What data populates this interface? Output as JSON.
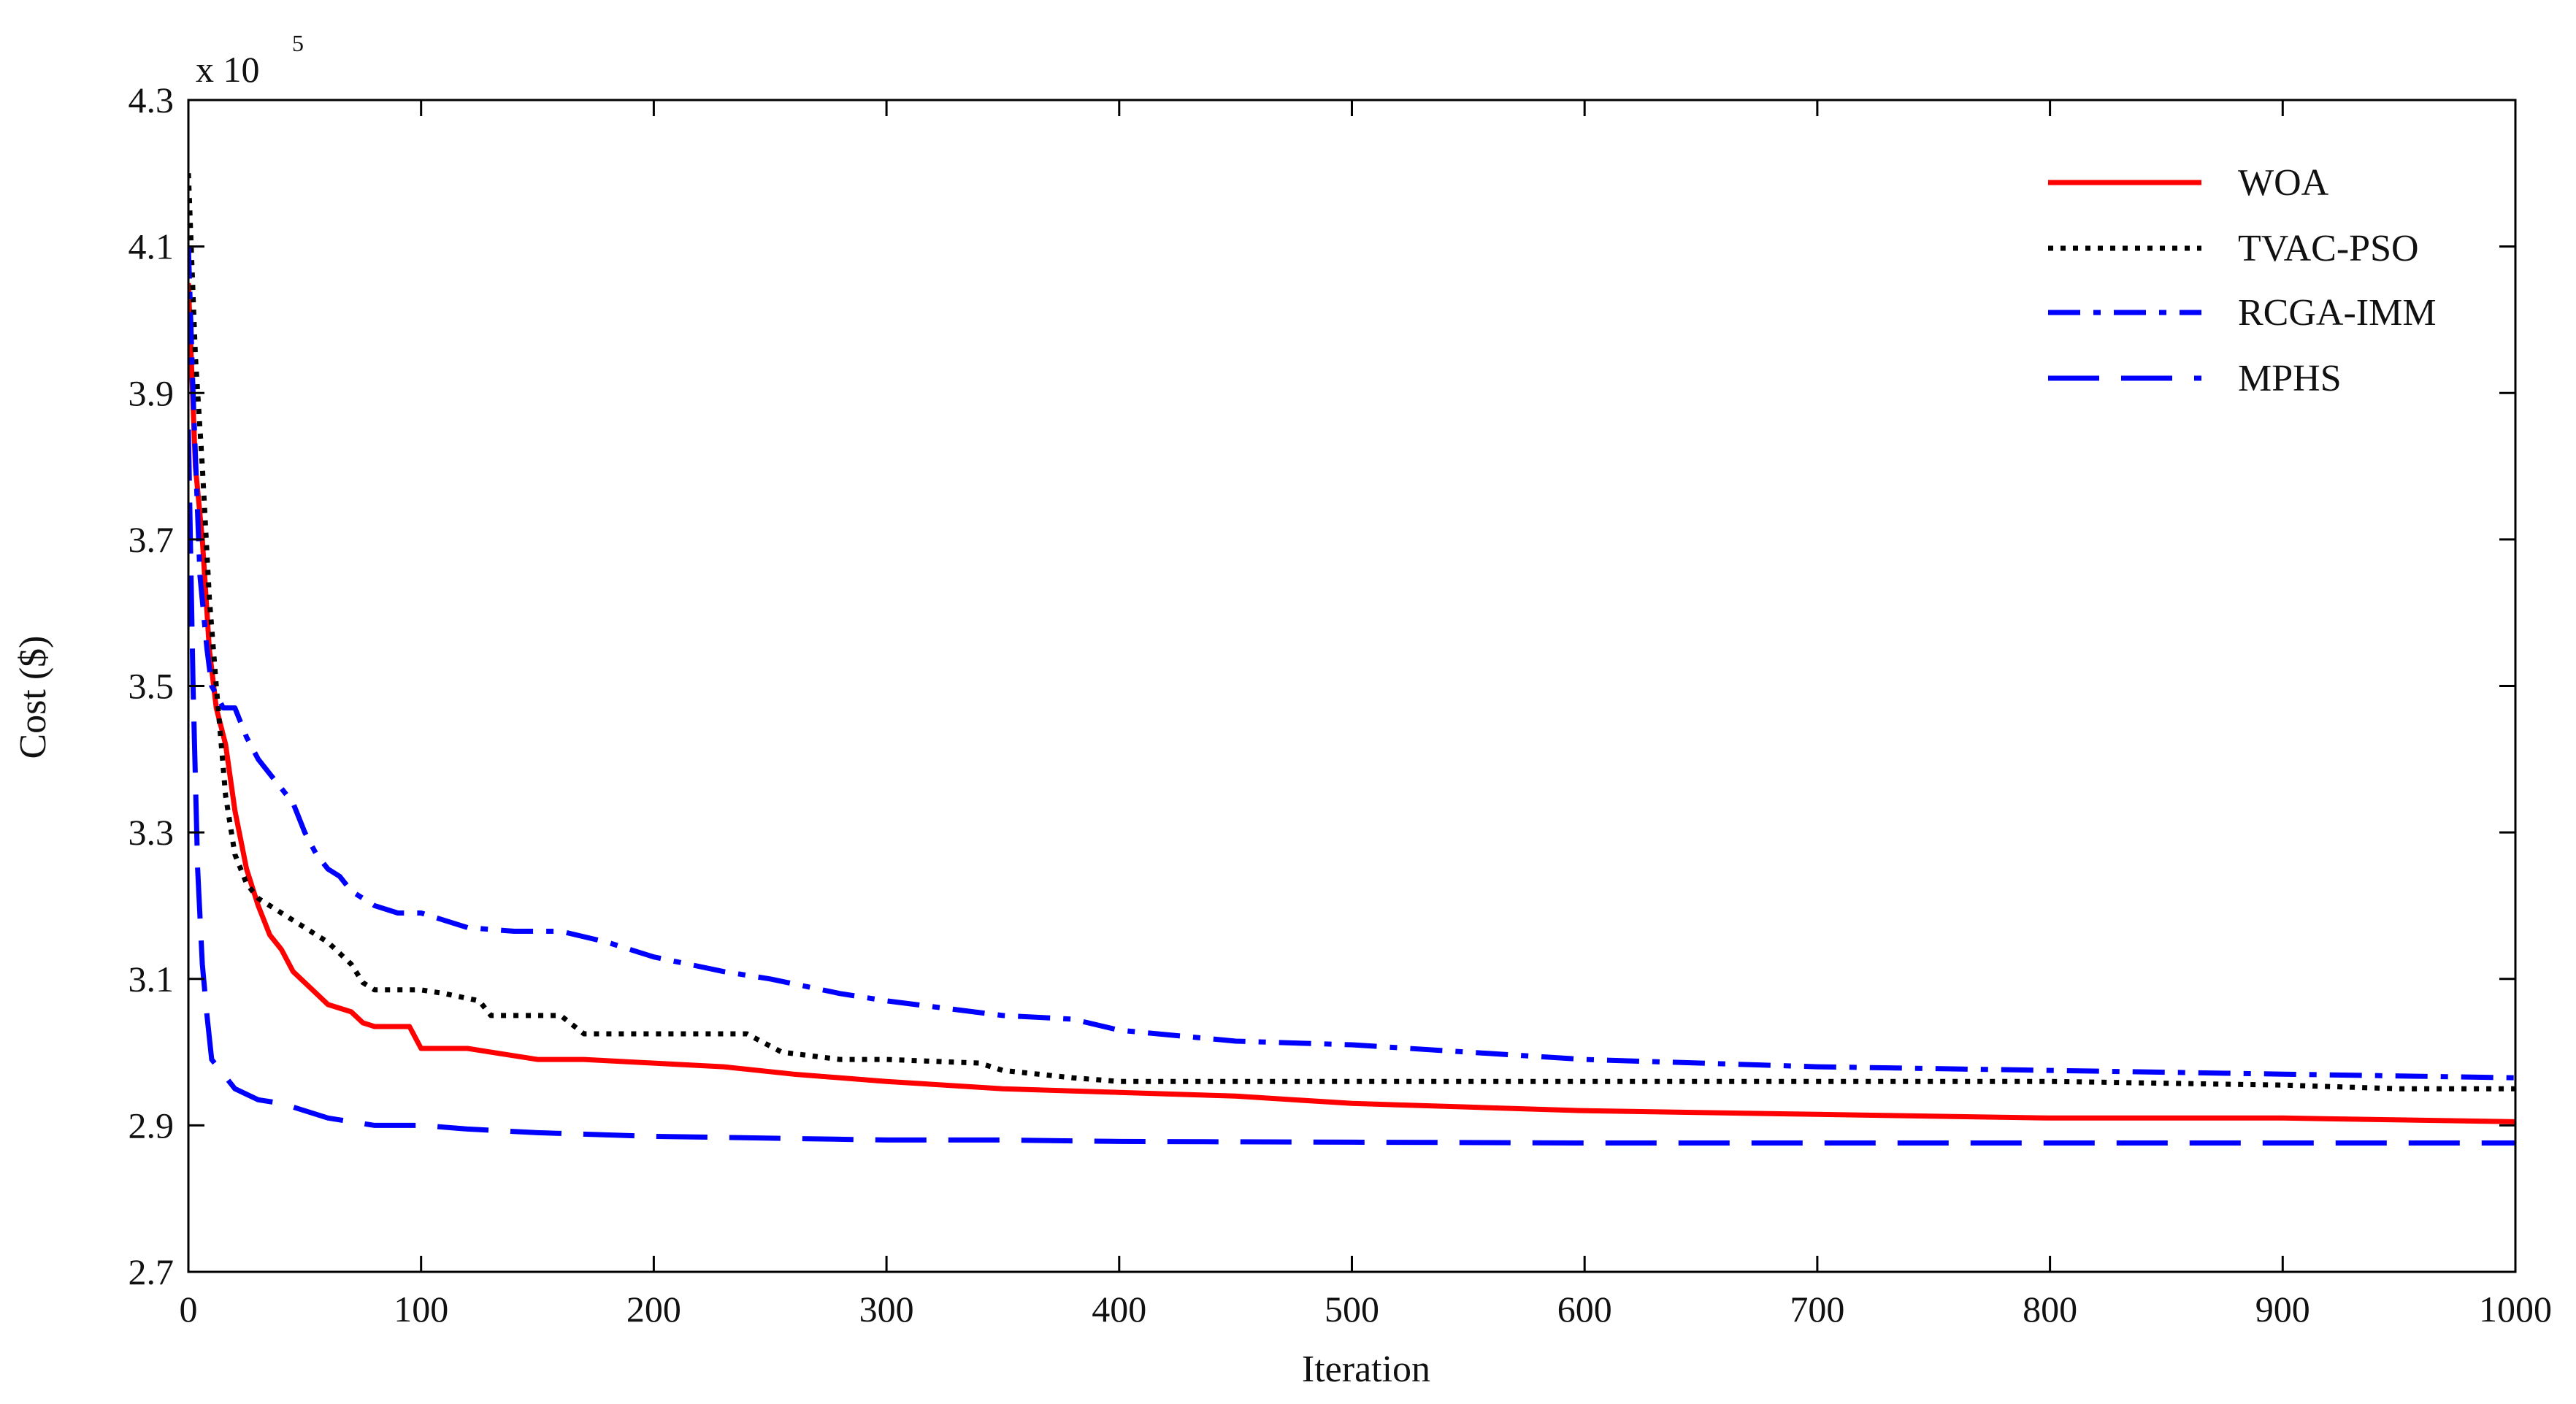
{
  "chart_data": {
    "type": "line",
    "title": "",
    "xlabel": "Iteration",
    "ylabel": "Cost ($)",
    "y_multiplier": {
      "base": "x 10",
      "exponent": "5"
    },
    "xlim": [
      0,
      1000
    ],
    "ylim": [
      2.7,
      4.3
    ],
    "x_ticks": [
      0,
      100,
      200,
      300,
      400,
      500,
      600,
      700,
      800,
      900,
      1000
    ],
    "x_tick_labels": [
      "0",
      "100",
      "200",
      "300",
      "400",
      "500",
      "600",
      "700",
      "800",
      "900",
      "1000"
    ],
    "y_ticks": [
      2.7,
      2.9,
      3.1,
      3.3,
      3.5,
      3.7,
      3.9,
      4.1,
      4.3
    ],
    "y_tick_labels": [
      "2.7",
      "2.9",
      "3.1",
      "3.3",
      "3.5",
      "3.7",
      "3.9",
      "4.1",
      "4.3"
    ],
    "grid": false,
    "legend_position": "top-right",
    "series": [
      {
        "name": "WOA",
        "color": "#ff0000",
        "style": "solid",
        "x": [
          0,
          3,
          6,
          9,
          12,
          16,
          20,
          25,
          30,
          35,
          40,
          45,
          50,
          55,
          60,
          65,
          70,
          75,
          80,
          90,
          95,
          100,
          110,
          120,
          130,
          140,
          150,
          170,
          200,
          230,
          260,
          300,
          350,
          400,
          450,
          500,
          550,
          600,
          700,
          800,
          900,
          1000
        ],
        "y": [
          4.05,
          3.8,
          3.7,
          3.55,
          3.47,
          3.42,
          3.33,
          3.25,
          3.2,
          3.16,
          3.14,
          3.11,
          3.095,
          3.08,
          3.065,
          3.06,
          3.055,
          3.04,
          3.035,
          3.035,
          3.035,
          3.005,
          3.005,
          3.005,
          3.0,
          2.995,
          2.99,
          2.99,
          2.985,
          2.98,
          2.97,
          2.96,
          2.95,
          2.945,
          2.94,
          2.93,
          2.925,
          2.92,
          2.915,
          2.91,
          2.91,
          2.905
        ]
      },
      {
        "name": "TVAC-PSO",
        "color": "#000000",
        "style": "dotted",
        "x": [
          0,
          3,
          6,
          9,
          12,
          16,
          20,
          25,
          30,
          40,
          50,
          60,
          70,
          75,
          80,
          100,
          110,
          125,
          130,
          160,
          170,
          200,
          240,
          255,
          280,
          300,
          340,
          350,
          380,
          400,
          500,
          600,
          800,
          900,
          950,
          1000
        ],
        "y": [
          4.2,
          3.95,
          3.8,
          3.62,
          3.5,
          3.35,
          3.27,
          3.23,
          3.21,
          3.19,
          3.17,
          3.15,
          3.12,
          3.095,
          3.085,
          3.085,
          3.08,
          3.07,
          3.05,
          3.05,
          3.025,
          3.025,
          3.025,
          3.0,
          2.99,
          2.99,
          2.985,
          2.975,
          2.965,
          2.96,
          2.96,
          2.96,
          2.96,
          2.955,
          2.95,
          2.95
        ]
      },
      {
        "name": "RCGA-IMM",
        "color": "#0000ff",
        "style": "dashdot",
        "x": [
          0,
          2,
          5,
          8,
          10,
          15,
          20,
          25,
          30,
          35,
          40,
          45,
          50,
          55,
          60,
          65,
          70,
          80,
          90,
          100,
          120,
          140,
          160,
          180,
          200,
          230,
          250,
          280,
          300,
          350,
          380,
          400,
          450,
          500,
          550,
          600,
          700,
          800,
          900,
          1000
        ],
        "y": [
          4.1,
          3.9,
          3.65,
          3.55,
          3.5,
          3.47,
          3.47,
          3.43,
          3.4,
          3.38,
          3.36,
          3.34,
          3.3,
          3.27,
          3.25,
          3.24,
          3.22,
          3.2,
          3.19,
          3.19,
          3.17,
          3.165,
          3.165,
          3.15,
          3.13,
          3.11,
          3.1,
          3.08,
          3.07,
          3.05,
          3.045,
          3.03,
          3.015,
          3.01,
          3.0,
          2.99,
          2.98,
          2.975,
          2.97,
          2.965
        ]
      },
      {
        "name": "MPHS",
        "color": "#0000ff",
        "style": "dashed",
        "x": [
          0,
          2,
          4,
          6,
          8,
          10,
          15,
          20,
          30,
          40,
          50,
          60,
          70,
          80,
          100,
          120,
          150,
          200,
          300,
          350,
          400,
          500,
          600,
          700,
          800,
          900,
          1000
        ],
        "y": [
          3.85,
          3.5,
          3.25,
          3.12,
          3.05,
          2.99,
          2.97,
          2.95,
          2.935,
          2.93,
          2.92,
          2.91,
          2.905,
          2.9,
          2.9,
          2.895,
          2.89,
          2.885,
          2.88,
          2.88,
          2.878,
          2.877,
          2.876,
          2.876,
          2.876,
          2.876,
          2.876
        ]
      }
    ]
  }
}
